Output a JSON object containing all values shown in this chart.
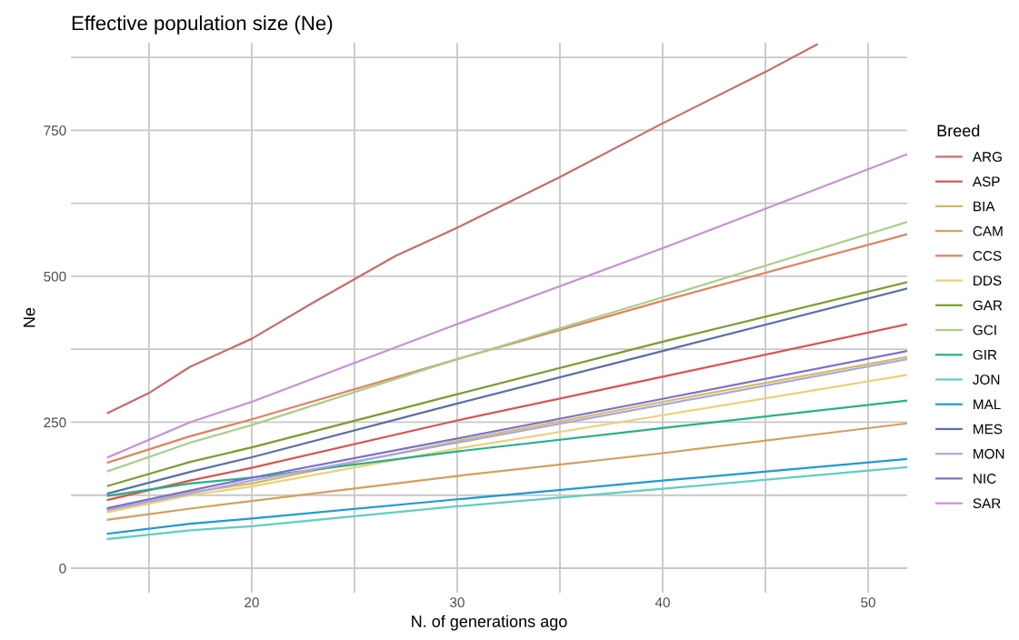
{
  "chart_data": {
    "type": "line",
    "title": "Effective population size (Ne)",
    "xlabel": "N. of generations ago",
    "ylabel": "Ne",
    "legend_title": "Breed",
    "legend": "right",
    "grid": true,
    "x": [
      13,
      17,
      20,
      30,
      40,
      51.9
    ],
    "xlim": [
      11.2,
      51.9
    ],
    "ylim": [
      -42,
      900
    ],
    "xticks": [
      {
        "value": 15,
        "label": null
      },
      20,
      {
        "value": 25,
        "label": null
      },
      30,
      {
        "value": 35,
        "label": null
      },
      40,
      {
        "value": 45,
        "label": null
      },
      50
    ],
    "yticks": [
      0,
      {
        "value": 125,
        "label": null
      },
      250,
      {
        "value": 375,
        "label": null
      },
      500,
      {
        "value": 625,
        "label": null
      },
      750,
      {
        "value": 875,
        "label": null
      }
    ],
    "series": [
      {
        "name": "ARG",
        "color": "#c96b6b",
        "x": [
          13,
          15,
          17,
          20,
          23,
          27,
          30,
          35,
          40,
          45,
          47.5
        ],
        "values": [
          266,
          300,
          345,
          393,
          455,
          535,
          583,
          670,
          762,
          850,
          897
        ]
      },
      {
        "name": "ASP",
        "color": "#d9534f",
        "values": [
          117,
          150,
          172,
          253,
          328,
          418
        ]
      },
      {
        "name": "BIA",
        "color": "#d8b860",
        "values": [
          97,
          130,
          145,
          218,
          285,
          362
        ]
      },
      {
        "name": "CAM",
        "color": "#d4a05a",
        "values": [
          83,
          102,
          115,
          158,
          197,
          248
        ]
      },
      {
        "name": "CCS",
        "color": "#e0825e",
        "values": [
          181,
          226,
          255,
          358,
          458,
          572
        ]
      },
      {
        "name": "DDS",
        "color": "#ecd07a",
        "values": [
          96,
          125,
          140,
          205,
          262,
          331
        ]
      },
      {
        "name": "GAR",
        "color": "#7a9e2e",
        "values": [
          141,
          182,
          207,
          298,
          388,
          490
        ]
      },
      {
        "name": "GCI",
        "color": "#a8cf8a",
        "values": [
          166,
          215,
          245,
          358,
          464,
          593
        ]
      },
      {
        "name": "GIR",
        "color": "#26b08a",
        "values": [
          124,
          145,
          155,
          200,
          240,
          287
        ]
      },
      {
        "name": "JON",
        "color": "#5fcfc0",
        "values": [
          50,
          65,
          72,
          106,
          136,
          173
        ]
      },
      {
        "name": "MAL",
        "color": "#1e9ad6",
        "values": [
          59,
          76,
          85,
          118,
          150,
          187
        ]
      },
      {
        "name": "MES",
        "color": "#5a6fa8",
        "values": [
          128,
          165,
          190,
          282,
          372,
          479
        ]
      },
      {
        "name": "MON",
        "color": "#a8a8e0",
        "values": [
          100,
          128,
          150,
          215,
          280,
          358
        ]
      },
      {
        "name": "NIC",
        "color": "#7a6fd0",
        "values": [
          103,
          133,
          155,
          222,
          290,
          372
        ]
      },
      {
        "name": "SAR",
        "color": "#c98fd6",
        "values": [
          190,
          250,
          285,
          418,
          548,
          709
        ]
      }
    ]
  }
}
